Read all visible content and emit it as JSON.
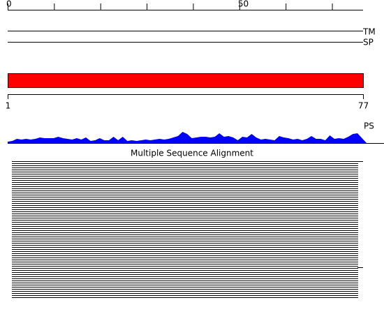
{
  "ruler": {
    "range": [
      0,
      77
    ],
    "ticks": [
      0,
      10,
      20,
      30,
      40,
      50,
      60,
      70
    ],
    "labels": [
      0,
      50
    ]
  },
  "tracks": [
    {
      "label": "TM"
    },
    {
      "label": "SP"
    }
  ],
  "sequence_bar": {
    "start": 1,
    "end": 77,
    "color": "#ff0000"
  },
  "profile": {
    "label": "PS",
    "color": "#0000ff",
    "ylim": [
      0,
      20
    ],
    "values": [
      2,
      3,
      6,
      5,
      6,
      5,
      6,
      8,
      7,
      7,
      7,
      9,
      7,
      6,
      5,
      7,
      5,
      8,
      3,
      4,
      7,
      4,
      4,
      9,
      4,
      9,
      3,
      4,
      3,
      4,
      5,
      4,
      5,
      6,
      5,
      6,
      8,
      10,
      16,
      13,
      7,
      8,
      9,
      9,
      8,
      9,
      14,
      9,
      10,
      8,
      4,
      9,
      8,
      13,
      8,
      5,
      6,
      5,
      4,
      10,
      8,
      7,
      5,
      6,
      4,
      6,
      10,
      6,
      6,
      4,
      11,
      6,
      7,
      6,
      9,
      13,
      14
    ]
  },
  "alignment": {
    "title": "Multiple Sequence Alignment"
  }
}
